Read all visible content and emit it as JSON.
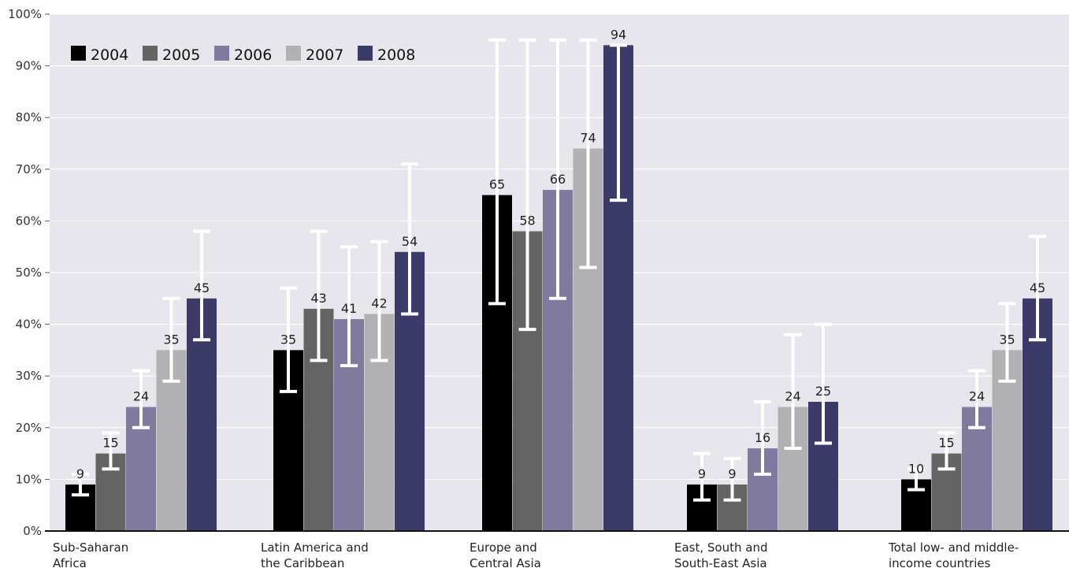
{
  "chart_data": {
    "type": "bar",
    "title": "",
    "xlabel": "",
    "ylabel": "",
    "ylim": [
      0,
      100
    ],
    "y_ticks": [
      "0%",
      "10%",
      "20%",
      "30%",
      "40%",
      "50%",
      "60%",
      "70%",
      "80%",
      "90%",
      "100%"
    ],
    "grid": true,
    "legend_position": "top-left",
    "categories": [
      [
        "Sub-Saharan",
        "Africa"
      ],
      [
        "Latin America and",
        "the Caribbean"
      ],
      [
        "Europe and",
        "Central Asia"
      ],
      [
        "East, South and",
        "South-East Asia"
      ],
      [
        "Total low- and middle-",
        "income countries"
      ]
    ],
    "series": [
      {
        "name": "2004",
        "color": "#000000",
        "values": [
          9,
          35,
          65,
          9,
          10
        ],
        "error_low": [
          7,
          27,
          44,
          6,
          8
        ],
        "error_high": [
          11,
          47,
          95,
          15,
          12
        ]
      },
      {
        "name": "2005",
        "color": "#646464",
        "values": [
          15,
          43,
          58,
          9,
          15
        ],
        "error_low": [
          12,
          33,
          39,
          6,
          12
        ],
        "error_high": [
          19,
          58,
          95,
          14,
          19
        ]
      },
      {
        "name": "2006",
        "color": "#7f7a9e",
        "values": [
          24,
          41,
          66,
          16,
          24
        ],
        "error_low": [
          20,
          32,
          45,
          11,
          20
        ],
        "error_high": [
          31,
          55,
          95,
          25,
          31
        ]
      },
      {
        "name": "2007",
        "color": "#b1b1b4",
        "values": [
          35,
          42,
          74,
          24,
          35
        ],
        "error_low": [
          29,
          33,
          51,
          16,
          29
        ],
        "error_high": [
          45,
          56,
          95,
          38,
          44
        ]
      },
      {
        "name": "2008",
        "color": "#3c3a69",
        "values": [
          45,
          54,
          94,
          25,
          45
        ],
        "error_low": [
          37,
          42,
          64,
          17,
          37
        ],
        "error_high": [
          58,
          71,
          94,
          40,
          57
        ]
      }
    ],
    "plot_background": "#e7e6ed",
    "error_bar_color": "#ffffff"
  }
}
